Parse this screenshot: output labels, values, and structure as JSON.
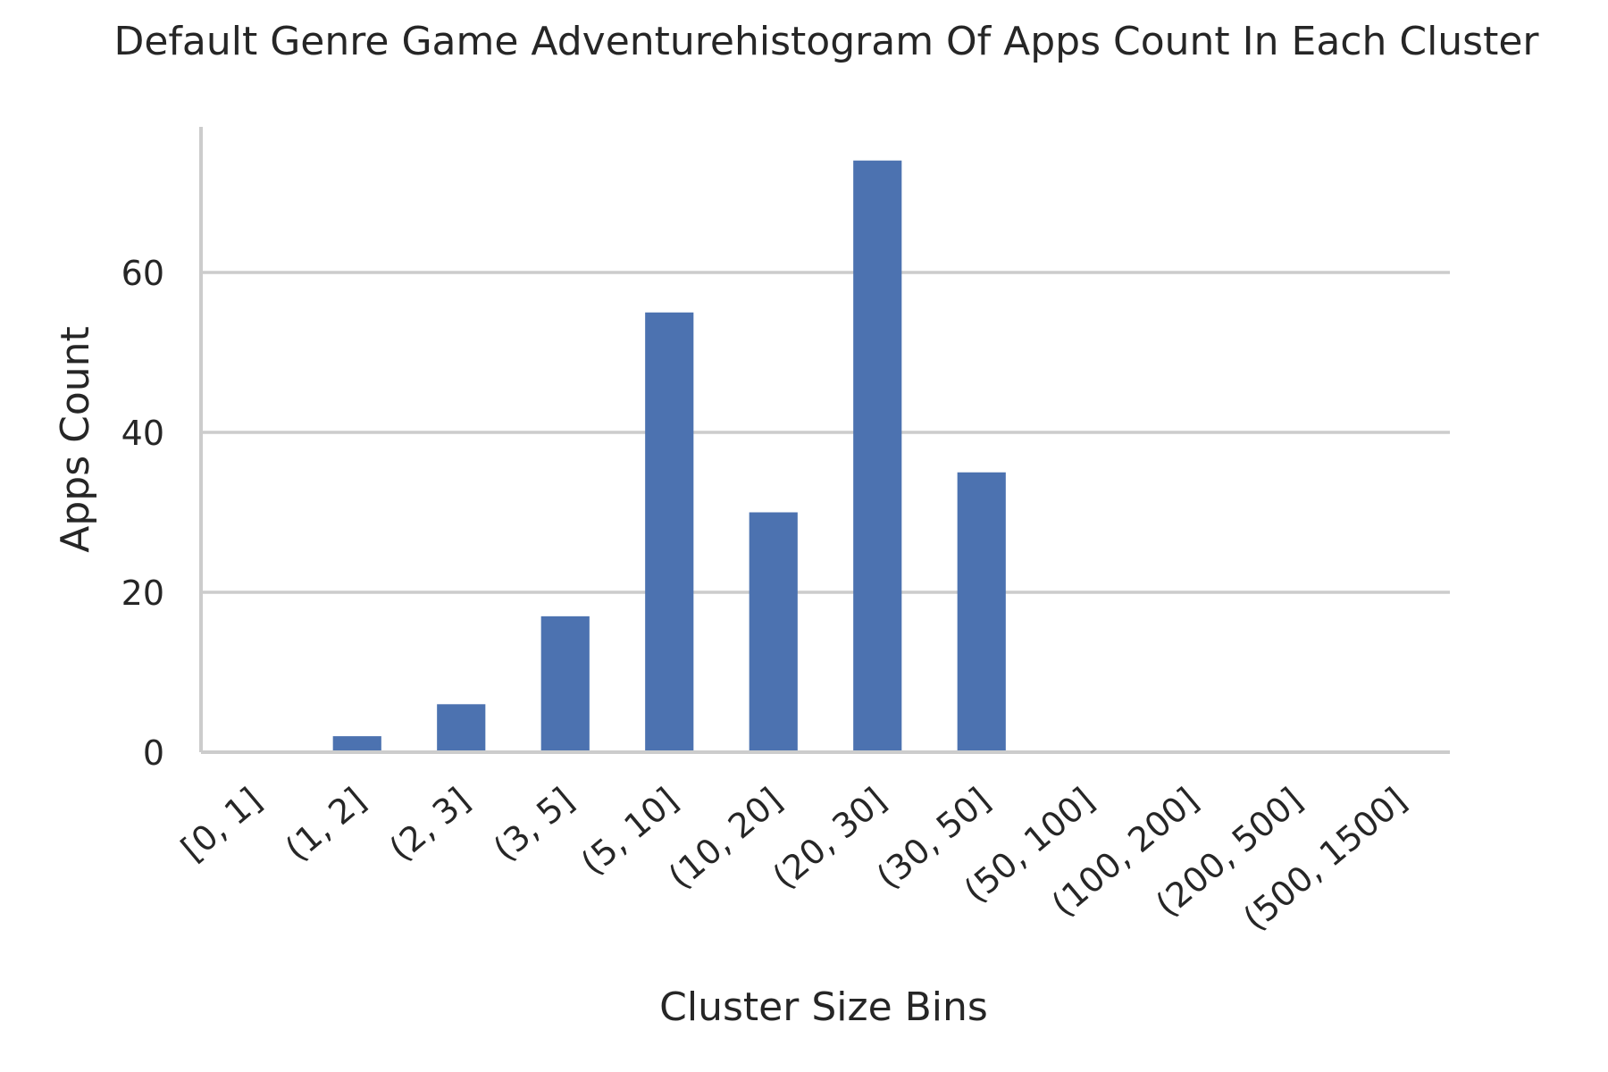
{
  "chart_data": {
    "type": "bar",
    "title": "Default Genre Game Adventurehistogram Of Apps Count In Each Cluster",
    "xlabel": "Cluster Size Bins",
    "ylabel": "Apps Count",
    "categories": [
      "[0, 1]",
      "(1, 2]",
      "(2, 3]",
      "(3, 5]",
      "(5, 10]",
      "(10, 20]",
      "(20, 30]",
      "(30, 50]",
      "(50, 100]",
      "(100, 200]",
      "(200, 500]",
      "(500, 1500]"
    ],
    "values": [
      0,
      2,
      6,
      17,
      55,
      30,
      74,
      35,
      0,
      0,
      0,
      0
    ],
    "ylim": [
      0,
      78
    ],
    "yticks": [
      0,
      20,
      40,
      60
    ],
    "grid": "horizontal",
    "bar_color": "#4c72b0",
    "legend": null
  }
}
